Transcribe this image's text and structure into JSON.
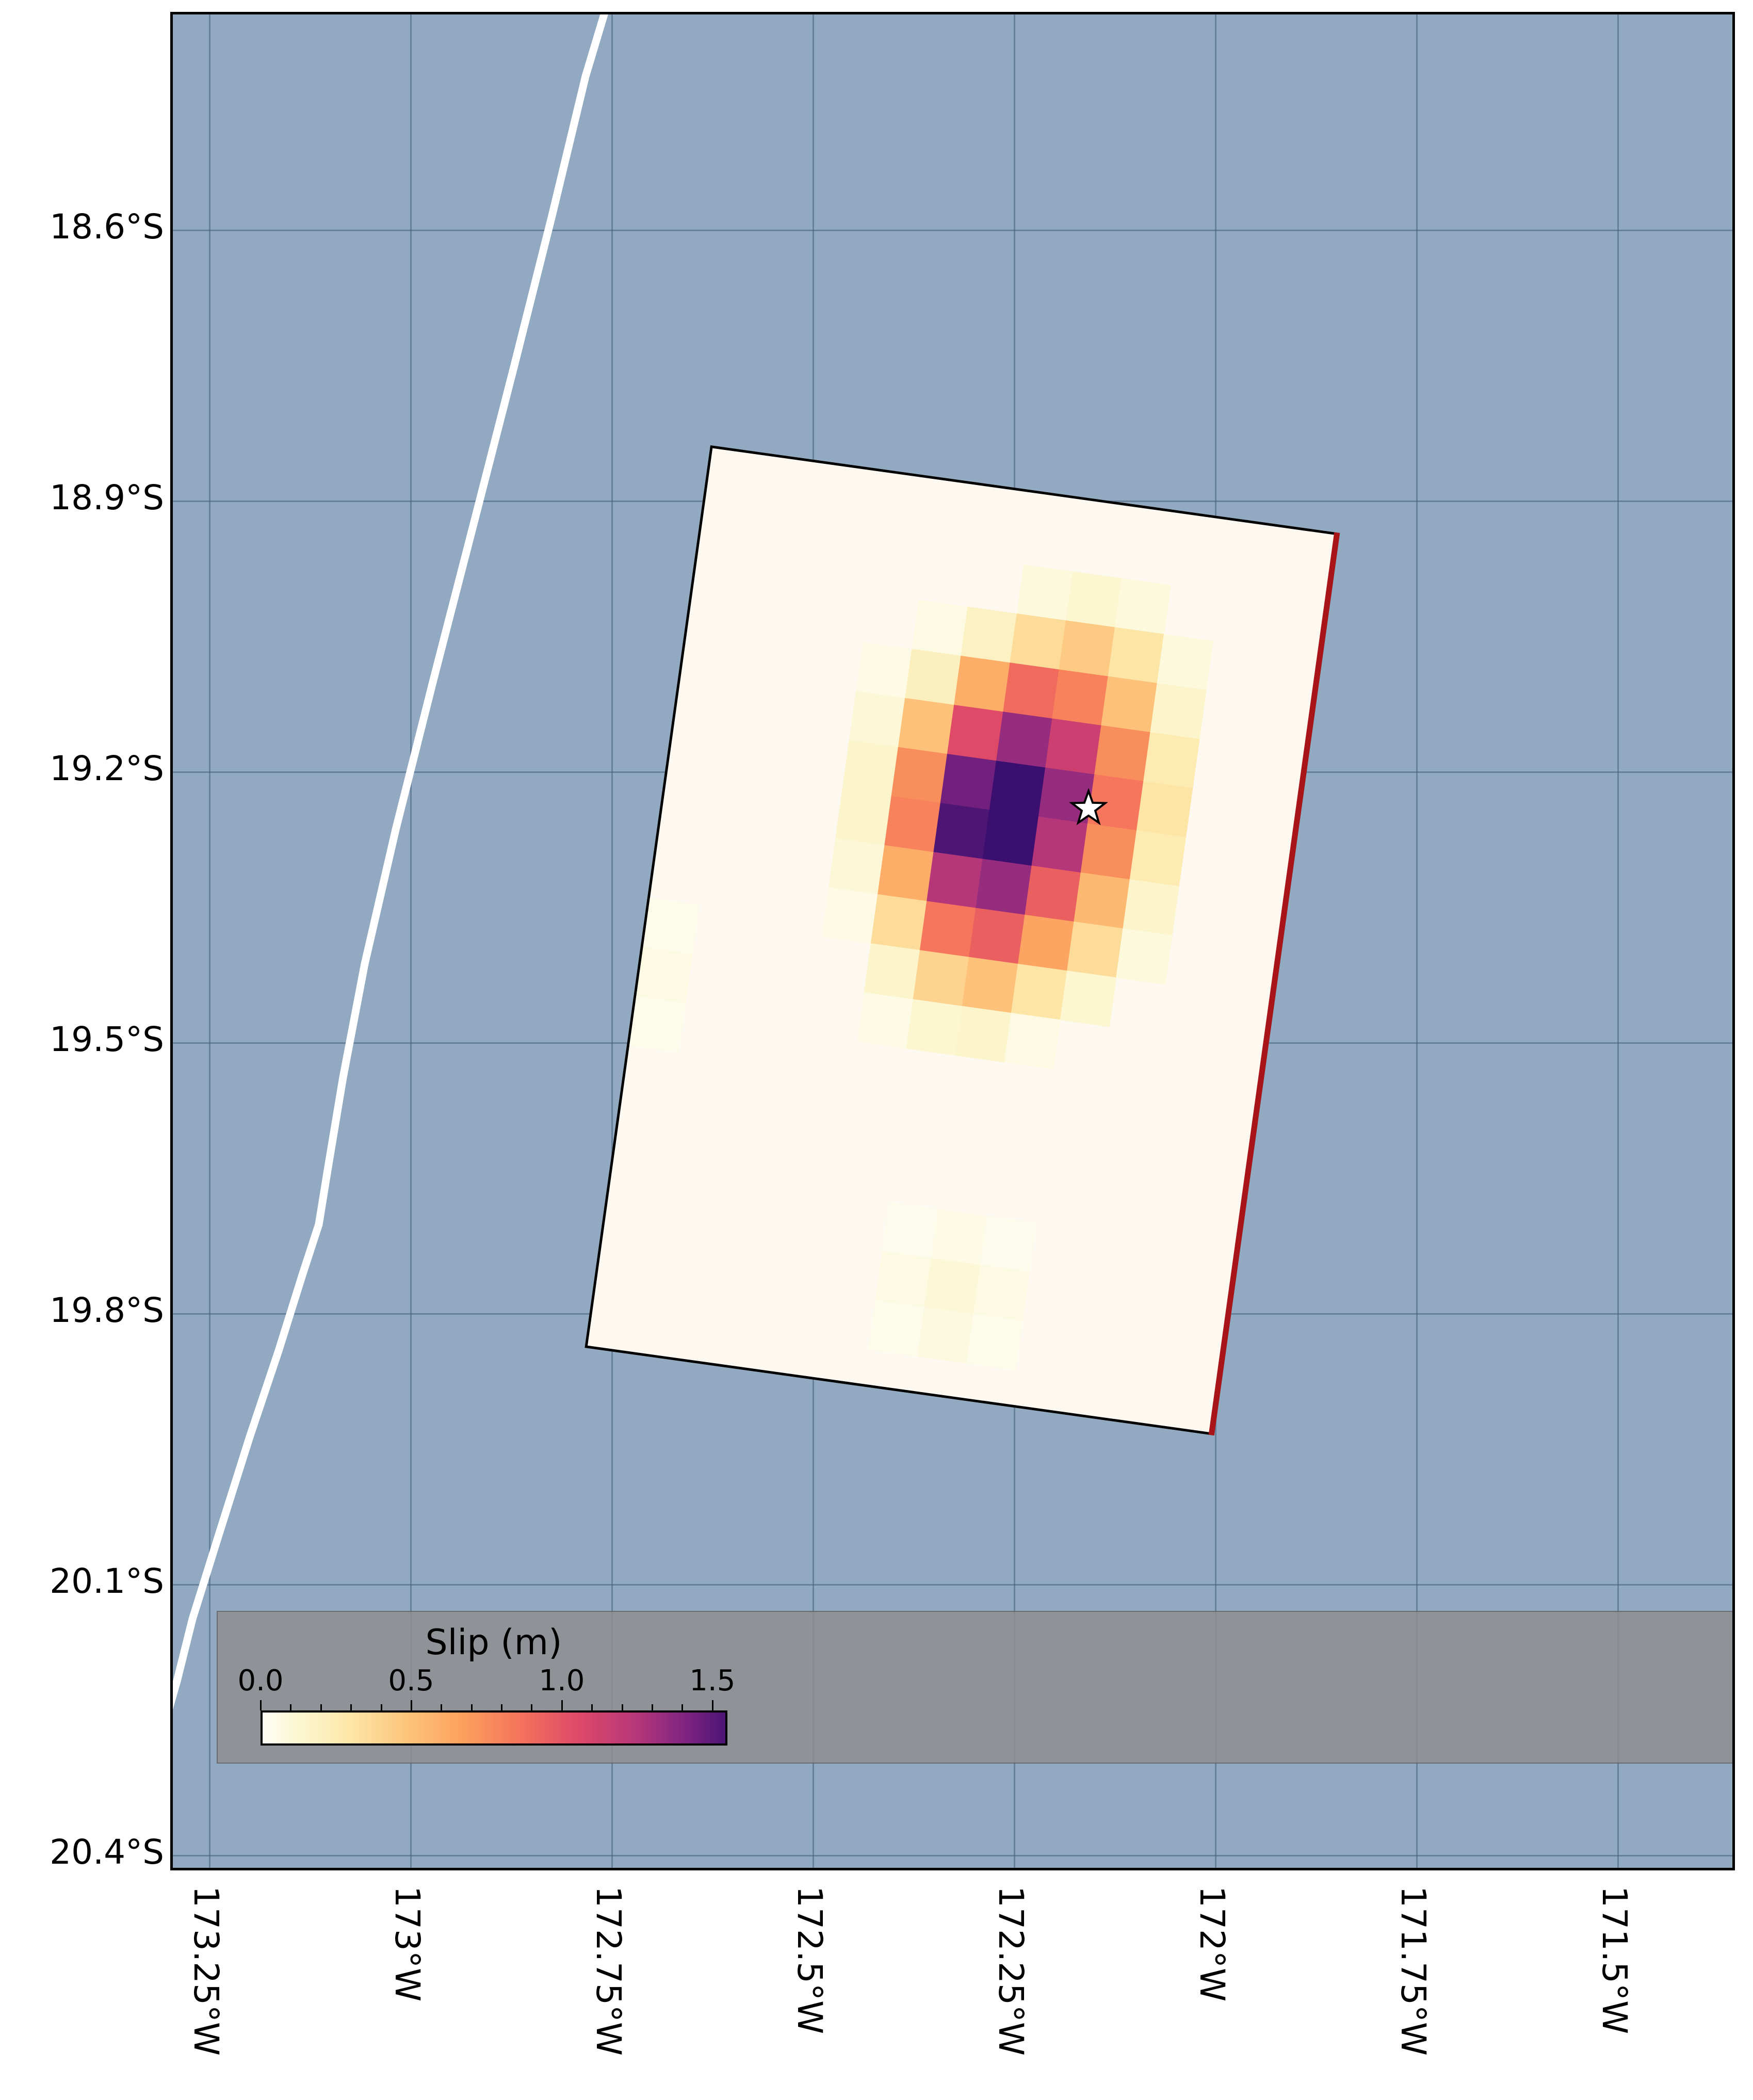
{
  "figure": {
    "type": "earthquake-finite-fault-slip-map"
  },
  "axes": {
    "x_tick_labels": [
      "173.25°W",
      "173°W",
      "172.75°W",
      "172.5°W",
      "172.25°W",
      "172°W",
      "171.75°W",
      "171.5°W"
    ],
    "y_tick_labels": [
      "18.6°S",
      "18.9°S",
      "19.2°S",
      "19.5°S",
      "19.8°S",
      "20.1°S",
      "20.4°S"
    ]
  },
  "legend": {
    "title": "Slip (m)",
    "tick_labels": [
      "0.0",
      "0.5",
      "1.0",
      "1.5"
    ],
    "tick_values": [
      0.0,
      0.5,
      1.0,
      1.5
    ]
  },
  "colors": {
    "figure_bg": "#ffffff",
    "ocean": "#91a9c1",
    "grid": "#46607a",
    "frame": "#000000",
    "trench": "#ffffff",
    "fault_fill": "#fdf8f0",
    "fault_edge": "#000000",
    "updip_edge": "#a81418",
    "legend_bg": "#8f8f8f",
    "star_fill": "#ffffff",
    "star_edge": "#000000",
    "colormap_stops": [
      [
        0.0,
        "#fdfdf5"
      ],
      [
        0.08,
        "#fcf6cf"
      ],
      [
        0.18,
        "#fde7a9"
      ],
      [
        0.3,
        "#fdc57c"
      ],
      [
        0.42,
        "#fca05d"
      ],
      [
        0.54,
        "#f4735c"
      ],
      [
        0.66,
        "#de4968"
      ],
      [
        0.78,
        "#b73779"
      ],
      [
        0.88,
        "#812581"
      ],
      [
        1.0,
        "#3b0f70"
      ]
    ]
  },
  "chart_data": {
    "type": "heatmap",
    "title": "Slip (m)",
    "x_axis": {
      "ticks": [
        "173.25°W",
        "173°W",
        "172.75°W",
        "172.5°W",
        "172.25°W",
        "172°W",
        "171.75°W",
        "171.5°W"
      ]
    },
    "y_axis": {
      "ticks": [
        "18.6°S",
        "18.9°S",
        "19.2°S",
        "19.5°S",
        "19.8°S",
        "20.1°S",
        "20.4°S"
      ]
    },
    "colorbar": {
      "label": "Slip (m)",
      "ticks": [
        0.0,
        0.5,
        1.0,
        1.5
      ],
      "vmin": 0.0,
      "vmax": 1.6,
      "orientation": "horizontal"
    },
    "fault_plane": {
      "corners_lonlat": [
        [
          -172.63,
          -18.84
        ],
        [
          -171.85,
          -18.94
        ],
        [
          -172.0,
          -19.94
        ],
        [
          -172.78,
          -19.84
        ]
      ],
      "max_slip_m": 1.6,
      "slip_grid_m": [
        [
          0,
          0,
          0,
          0.08,
          0.12,
          0.08,
          0
        ],
        [
          0,
          0.06,
          0.18,
          0.35,
          0.45,
          0.3,
          0.08
        ],
        [
          0.05,
          0.2,
          0.6,
          0.9,
          0.8,
          0.5,
          0.15
        ],
        [
          0.1,
          0.5,
          1.05,
          1.35,
          1.15,
          0.75,
          0.25
        ],
        [
          0.15,
          0.75,
          1.45,
          1.6,
          1.35,
          0.85,
          0.3
        ],
        [
          0.15,
          0.8,
          1.55,
          1.6,
          1.25,
          0.75,
          0.25
        ],
        [
          0.1,
          0.6,
          1.25,
          1.35,
          0.95,
          0.55,
          0.15
        ],
        [
          0.05,
          0.35,
          0.85,
          0.95,
          0.65,
          0.35,
          0.08
        ],
        [
          0,
          0.15,
          0.4,
          0.5,
          0.3,
          0.12,
          0
        ],
        [
          0,
          0.05,
          0.12,
          0.15,
          0.06,
          0,
          0
        ]
      ],
      "low_slip_patches": [
        {
          "name": "south-center",
          "rows": [
            [
              0.03,
              0.05,
              0.03
            ],
            [
              0.06,
              0.1,
              0.06
            ],
            [
              0.04,
              0.07,
              0.04
            ]
          ]
        },
        {
          "name": "west-edge",
          "rows": [
            [
              0.04
            ],
            [
              0.06
            ],
            [
              0.04
            ]
          ]
        }
      ]
    },
    "epicenter": {
      "lon_deg_w": 172.16,
      "lat_deg_s": 19.24,
      "marker": "star"
    },
    "features": {
      "trench_line": true
    }
  }
}
